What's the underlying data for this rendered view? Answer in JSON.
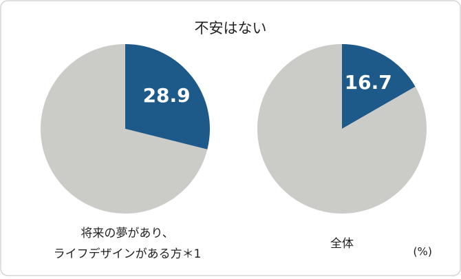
{
  "title": "不安はない",
  "unit": "(%)",
  "chart_data": [
    {
      "type": "pie",
      "label": [
        "将来の夢があり、",
        "ライフデザインがある方＊1"
      ],
      "categories": [
        null,
        null
      ],
      "values": [
        28.9,
        71.1
      ],
      "colors": [
        "#1d5a8a",
        "#cbcbc7"
      ]
    },
    {
      "type": "pie",
      "label": [
        "全体"
      ],
      "categories": [
        null,
        null
      ],
      "values": [
        16.7,
        83.3
      ],
      "colors": [
        "#1d5a8a",
        "#cbcbc7"
      ]
    }
  ]
}
